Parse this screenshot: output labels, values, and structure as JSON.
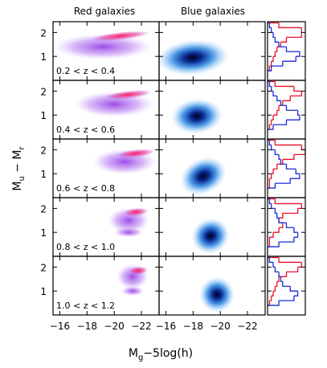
{
  "chart_data": {
    "type": "density-grid",
    "column_titles": [
      "Red galaxies",
      "Blue galaxies"
    ],
    "xlabel": [
      "M",
      "g",
      "−5log(h)"
    ],
    "ylabel": [
      "M",
      "u",
      " − M",
      "r"
    ],
    "xlim": [
      -15.5,
      -23.3
    ],
    "xticks": [
      {
        "value": -16,
        "label": "−16"
      },
      {
        "value": -18,
        "label": "−18"
      },
      {
        "value": -20,
        "label": "−20"
      },
      {
        "value": -22,
        "label": "−22"
      }
    ],
    "ylim": [
      0,
      2.45
    ],
    "yticks": [
      1,
      2
    ],
    "hist_bins": [
      0.4,
      0.6,
      0.8,
      1.0,
      1.2,
      1.4,
      1.6,
      1.8,
      2.0,
      2.2,
      2.4
    ],
    "hist_xlim": [
      0,
      1
    ],
    "colors": {
      "red": "#e8102a",
      "blue": "#1a2ad8"
    },
    "rows": [
      {
        "label": "0.2 < z < 0.4",
        "red_hist": [
          0.05,
          0.1,
          0.15,
          0.2,
          0.25,
          0.35,
          0.5,
          0.9,
          0.9,
          0.3
        ],
        "blue_hist": [
          0.1,
          0.4,
          0.75,
          0.85,
          0.5,
          0.3,
          0.2,
          0.15,
          0.1,
          0.05
        ]
      },
      {
        "label": "0.4 < z < 0.6",
        "red_hist": [
          0.05,
          0.1,
          0.15,
          0.25,
          0.3,
          0.4,
          0.6,
          0.9,
          0.7,
          0.2
        ],
        "blue_hist": [
          0.15,
          0.5,
          0.85,
          0.8,
          0.5,
          0.35,
          0.25,
          0.15,
          0.1,
          0.05
        ]
      },
      {
        "label": "0.6 < z < 0.8",
        "red_hist": [
          0.05,
          0.05,
          0.1,
          0.15,
          0.25,
          0.4,
          0.7,
          1.0,
          0.9,
          0.2
        ],
        "blue_hist": [
          0.2,
          0.6,
          0.85,
          0.75,
          0.5,
          0.35,
          0.3,
          0.2,
          0.1,
          0.05
        ]
      },
      {
        "label": "0.8 < z < 1.0",
        "red_hist": [
          0.05,
          0.05,
          0.15,
          0.3,
          0.4,
          0.3,
          0.4,
          0.8,
          0.9,
          0.2
        ],
        "blue_hist": [
          0.3,
          0.7,
          0.8,
          0.7,
          0.5,
          0.3,
          0.25,
          0.2,
          0.1,
          0.05
        ]
      },
      {
        "label": "1.0 < z < 1.2",
        "red_hist": [
          0.05,
          0.1,
          0.15,
          0.2,
          0.25,
          0.3,
          0.5,
          0.8,
          0.9,
          0.3
        ],
        "blue_hist": [
          0.3,
          0.7,
          0.8,
          0.6,
          0.4,
          0.35,
          0.3,
          0.2,
          0.15,
          0.05
        ]
      }
    ]
  }
}
